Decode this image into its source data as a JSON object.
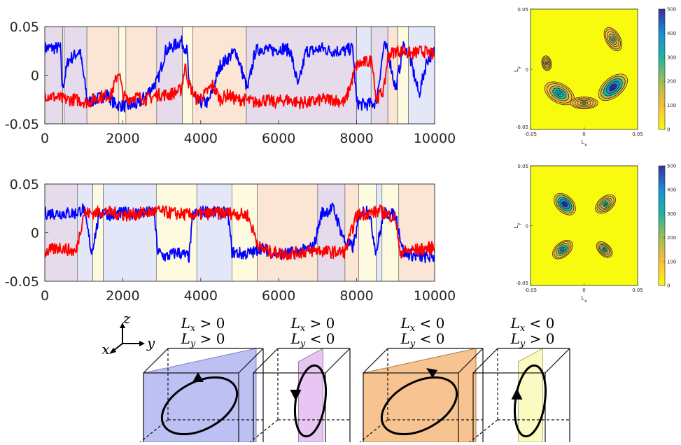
{
  "chart_data": [
    {
      "type": "line",
      "xlim": [
        0,
        10000
      ],
      "ylim": [
        -0.05,
        0.05
      ],
      "xticks": [
        "0",
        "2000",
        "4000",
        "6000",
        "8000",
        "10000"
      ],
      "yticks": [
        "-0.05",
        "0",
        "0.05"
      ],
      "series": [
        {
          "color": "#0000ff",
          "x": [
            0,
            400,
            450,
            600,
            900,
            1100,
            1300,
            1600,
            1800,
            2100,
            2400,
            2900,
            3100,
            3300,
            3500,
            3650,
            3700,
            3900,
            4000,
            4200,
            4500,
            4900,
            5200,
            5400,
            5600,
            5800,
            6100,
            6300,
            6500,
            6700,
            6900,
            7100,
            7300,
            7500,
            7700,
            7900,
            8000,
            8100,
            8300,
            8500,
            8700,
            8800,
            9000,
            9200,
            9350,
            9600,
            9800,
            10000
          ],
          "y": [
            0.028,
            0.028,
            -0.015,
            0.015,
            0.025,
            -0.028,
            -0.025,
            -0.02,
            -0.03,
            -0.032,
            -0.03,
            -0.005,
            0.025,
            0.03,
            0.035,
            0.025,
            -0.01,
            -0.028,
            -0.028,
            -0.028,
            0.01,
            0.025,
            -0.015,
            0.025,
            0.028,
            0.025,
            0.028,
            0.025,
            -0.012,
            0.025,
            0.025,
            0.028,
            0.025,
            0.025,
            0.025,
            0.028,
            -0.028,
            -0.03,
            -0.03,
            -0.028,
            0.03,
            0.025,
            -0.015,
            0.03,
            0.02,
            -0.02,
            0.015,
            0.025
          ]
        },
        {
          "color": "#ff0000",
          "x": [
            0,
            500,
            800,
            1100,
            1400,
            1700,
            1900,
            2000,
            2100,
            2300,
            2600,
            2900,
            3200,
            3500,
            3600,
            3700,
            3900,
            4100,
            4300,
            4500,
            4700,
            4900,
            5100,
            5400,
            5600,
            5900,
            6200,
            6500,
            6800,
            7100,
            7400,
            7700,
            8000,
            8100,
            8400,
            8500,
            8700,
            8800,
            9000,
            9200,
            9400,
            9700,
            10000
          ],
          "y": [
            -0.02,
            -0.025,
            -0.025,
            -0.028,
            -0.022,
            -0.02,
            0.005,
            -0.02,
            -0.025,
            -0.022,
            -0.025,
            -0.02,
            -0.02,
            -0.015,
            0.01,
            -0.01,
            -0.025,
            -0.02,
            -0.01,
            -0.025,
            -0.02,
            -0.025,
            -0.025,
            -0.028,
            -0.025,
            -0.028,
            -0.025,
            -0.028,
            -0.028,
            -0.025,
            -0.025,
            -0.028,
            0.01,
            0.012,
            0.015,
            -0.025,
            -0.015,
            0.02,
            0.025,
            0.025,
            0.022,
            0.025,
            0.02
          ]
        }
      ],
      "regions": [
        {
          "x0": 0,
          "x1": 460,
          "fill": "#e6dbea"
        },
        {
          "x0": 460,
          "x1": 500,
          "fill": "#fdfae0"
        },
        {
          "x0": 500,
          "x1": 1080,
          "fill": "#e6dbea"
        },
        {
          "x0": 1080,
          "x1": 1900,
          "fill": "#fbe6d6"
        },
        {
          "x0": 1900,
          "x1": 2080,
          "fill": "#fdfae0"
        },
        {
          "x0": 2080,
          "x1": 2870,
          "fill": "#fbe6d6"
        },
        {
          "x0": 2870,
          "x1": 3530,
          "fill": "#e6dbea"
        },
        {
          "x0": 3530,
          "x1": 3800,
          "fill": "#fdfae0"
        },
        {
          "x0": 3800,
          "x1": 5170,
          "fill": "#fbe6d6"
        },
        {
          "x0": 5170,
          "x1": 8000,
          "fill": "#e6dbea"
        },
        {
          "x0": 8000,
          "x1": 8370,
          "fill": "#e4e7f8"
        },
        {
          "x0": 8370,
          "x1": 8800,
          "fill": "#e6dbea"
        },
        {
          "x0": 8800,
          "x1": 9050,
          "fill": "#fbe6d6"
        },
        {
          "x0": 9050,
          "x1": 9330,
          "fill": "#fdfae0"
        },
        {
          "x0": 9330,
          "x1": 10000,
          "fill": "#e4e7f8"
        }
      ]
    },
    {
      "type": "line",
      "xlim": [
        0,
        10000
      ],
      "ylim": [
        -0.05,
        0.05
      ],
      "xticks": [
        "0",
        "2000",
        "4000",
        "6000",
        "8000",
        "10000"
      ],
      "yticks": [
        "-0.05",
        "0",
        "0.05"
      ],
      "series": [
        {
          "color": "#0000ff",
          "x": [
            0,
            400,
            800,
            1000,
            1200,
            1400,
            1500,
            1700,
            2000,
            2300,
            2600,
            2800,
            2900,
            3100,
            3400,
            3700,
            3800,
            4100,
            4400,
            4700,
            4800,
            5100,
            5400,
            5500,
            5800,
            6100,
            6500,
            6900,
            7100,
            7400,
            7700,
            7900,
            8100,
            8300,
            8500,
            8700,
            9000,
            9200,
            9600,
            10000
          ],
          "y": [
            0.02,
            0.02,
            0.02,
            0.025,
            -0.02,
            0.018,
            0.022,
            0.018,
            0.02,
            0.02,
            0.02,
            0.022,
            -0.02,
            -0.025,
            -0.02,
            -0.025,
            0.018,
            0.022,
            0.02,
            0.02,
            -0.02,
            -0.022,
            -0.02,
            -0.015,
            -0.02,
            -0.022,
            -0.02,
            -0.015,
            0.02,
            0.025,
            -0.01,
            -0.015,
            0.02,
            0.025,
            -0.02,
            0.02,
            0.018,
            -0.02,
            -0.025,
            -0.025
          ]
        },
        {
          "color": "#ff0000",
          "x": [
            0,
            400,
            800,
            1000,
            1200,
            1500,
            1800,
            2100,
            2500,
            2900,
            3300,
            3800,
            4300,
            4800,
            5200,
            5500,
            5800,
            6200,
            6600,
            7000,
            7300,
            7700,
            8000,
            8300,
            8600,
            9000,
            9100,
            9500,
            10000
          ],
          "y": [
            -0.02,
            -0.015,
            -0.02,
            0.02,
            0.02,
            0.022,
            0.02,
            0.018,
            0.02,
            0.022,
            0.02,
            0.018,
            0.02,
            0.02,
            0.018,
            -0.015,
            -0.02,
            -0.022,
            -0.02,
            -0.018,
            -0.02,
            -0.02,
            0.018,
            0.02,
            0.022,
            0.015,
            -0.02,
            -0.018,
            -0.015
          ]
        }
      ],
      "regions": [
        {
          "x0": 0,
          "x1": 840,
          "fill": "#e6dbea"
        },
        {
          "x0": 840,
          "x1": 1230,
          "fill": "#e4e7f8"
        },
        {
          "x0": 1230,
          "x1": 1500,
          "fill": "#fdfae0"
        },
        {
          "x0": 1500,
          "x1": 2860,
          "fill": "#e4e7f8"
        },
        {
          "x0": 2860,
          "x1": 3900,
          "fill": "#fdfae0"
        },
        {
          "x0": 3900,
          "x1": 4800,
          "fill": "#e4e7f8"
        },
        {
          "x0": 4800,
          "x1": 5450,
          "fill": "#fdfae0"
        },
        {
          "x0": 5450,
          "x1": 7000,
          "fill": "#fbe6d6"
        },
        {
          "x0": 7000,
          "x1": 7700,
          "fill": "#e6dbea"
        },
        {
          "x0": 7700,
          "x1": 8050,
          "fill": "#fbe6d6"
        },
        {
          "x0": 8050,
          "x1": 8500,
          "fill": "#fdfae0"
        },
        {
          "x0": 8500,
          "x1": 8650,
          "fill": "#e4e7f8"
        },
        {
          "x0": 8650,
          "x1": 9080,
          "fill": "#fdfae0"
        },
        {
          "x0": 9080,
          "x1": 10000,
          "fill": "#fbe6d6"
        }
      ]
    },
    {
      "type": "heatmap",
      "xlabel": "L",
      "xlabel_sub": "x",
      "ylabel": "L",
      "ylabel_sub": "y",
      "xlim": [
        -0.05,
        0.05
      ],
      "ylim": [
        -0.05,
        0.05
      ],
      "xticks": [
        "-0.05",
        "0",
        "0.05"
      ],
      "yticks": [
        "-0.05",
        "0",
        "0.05"
      ],
      "colorbar_ticks": [
        "0",
        "100",
        "200",
        "300",
        "400",
        "500"
      ],
      "clim": [
        0,
        500
      ],
      "blobs": [
        {
          "cx": 0.027,
          "cy": -0.015,
          "rx": 0.016,
          "ry": 0.008,
          "rot": -40,
          "peak": 500
        },
        {
          "cx": -0.023,
          "cy": -0.02,
          "rx": 0.015,
          "ry": 0.008,
          "rot": 30,
          "peak": 350
        },
        {
          "cx": 0.0,
          "cy": -0.028,
          "rx": 0.013,
          "ry": 0.005,
          "rot": 0,
          "peak": 150
        },
        {
          "cx": 0.027,
          "cy": 0.025,
          "rx": 0.012,
          "ry": 0.006,
          "rot": 60,
          "peak": 220
        },
        {
          "cx": -0.035,
          "cy": 0.005,
          "rx": 0.007,
          "ry": 0.004,
          "rot": 80,
          "peak": 120
        }
      ]
    },
    {
      "type": "heatmap",
      "xlabel": "L",
      "xlabel_sub": "x",
      "ylabel": "L",
      "ylabel_sub": "y",
      "xlim": [
        -0.05,
        0.05
      ],
      "ylim": [
        -0.05,
        0.05
      ],
      "xticks": [
        "-0.05",
        "0",
        "0.05"
      ],
      "yticks": [
        "-0.05",
        "0",
        "0.05"
      ],
      "colorbar_ticks": [
        "0",
        "100",
        "200",
        "300",
        "400",
        "500"
      ],
      "clim": [
        0,
        500
      ],
      "blobs": [
        {
          "cx": -0.018,
          "cy": 0.018,
          "rx": 0.012,
          "ry": 0.007,
          "rot": 45,
          "peak": 480
        },
        {
          "cx": 0.02,
          "cy": 0.018,
          "rx": 0.011,
          "ry": 0.006,
          "rot": -40,
          "peak": 300
        },
        {
          "cx": -0.02,
          "cy": -0.02,
          "rx": 0.011,
          "ry": 0.006,
          "rot": -40,
          "peak": 330
        },
        {
          "cx": 0.019,
          "cy": -0.02,
          "rx": 0.009,
          "ry": 0.005,
          "rot": 45,
          "peak": 250
        }
      ]
    }
  ],
  "axes_legend": {
    "z": "z",
    "x": "x",
    "y": "y"
  },
  "cubes": [
    {
      "lx": "L",
      "lx_sub": "x",
      "lx_op": "> 0",
      "ly": "L",
      "ly_sub": "y",
      "ly_op": "> 0",
      "fill": "#b9bdf2",
      "stroke": "#8080c0",
      "plane": "diag-left",
      "arrow": "up"
    },
    {
      "lx": "L",
      "lx_sub": "x",
      "lx_op": "> 0",
      "ly": "L",
      "ly_sub": "y",
      "ly_op": "< 0",
      "fill": "#e6c3f2",
      "stroke": "#a080b0",
      "plane": "vertical",
      "arrow": "down"
    },
    {
      "lx": "L",
      "lx_sub": "x",
      "lx_op": "< 0",
      "ly": "L",
      "ly_sub": "y",
      "ly_op": "< 0",
      "fill": "#f7c08a",
      "stroke": "#b07a40",
      "plane": "diag-left",
      "arrow": "down-right"
    },
    {
      "lx": "L",
      "lx_sub": "x",
      "lx_op": "< 0",
      "ly": "L",
      "ly_sub": "y",
      "ly_op": "> 0",
      "fill": "#fafac0",
      "stroke": "#b0b080",
      "plane": "vertical",
      "arrow": "up"
    }
  ],
  "colors": {
    "blue_series": "#0000ff",
    "red_series": "#ff0000",
    "heat_background": "#f9fb0e"
  }
}
